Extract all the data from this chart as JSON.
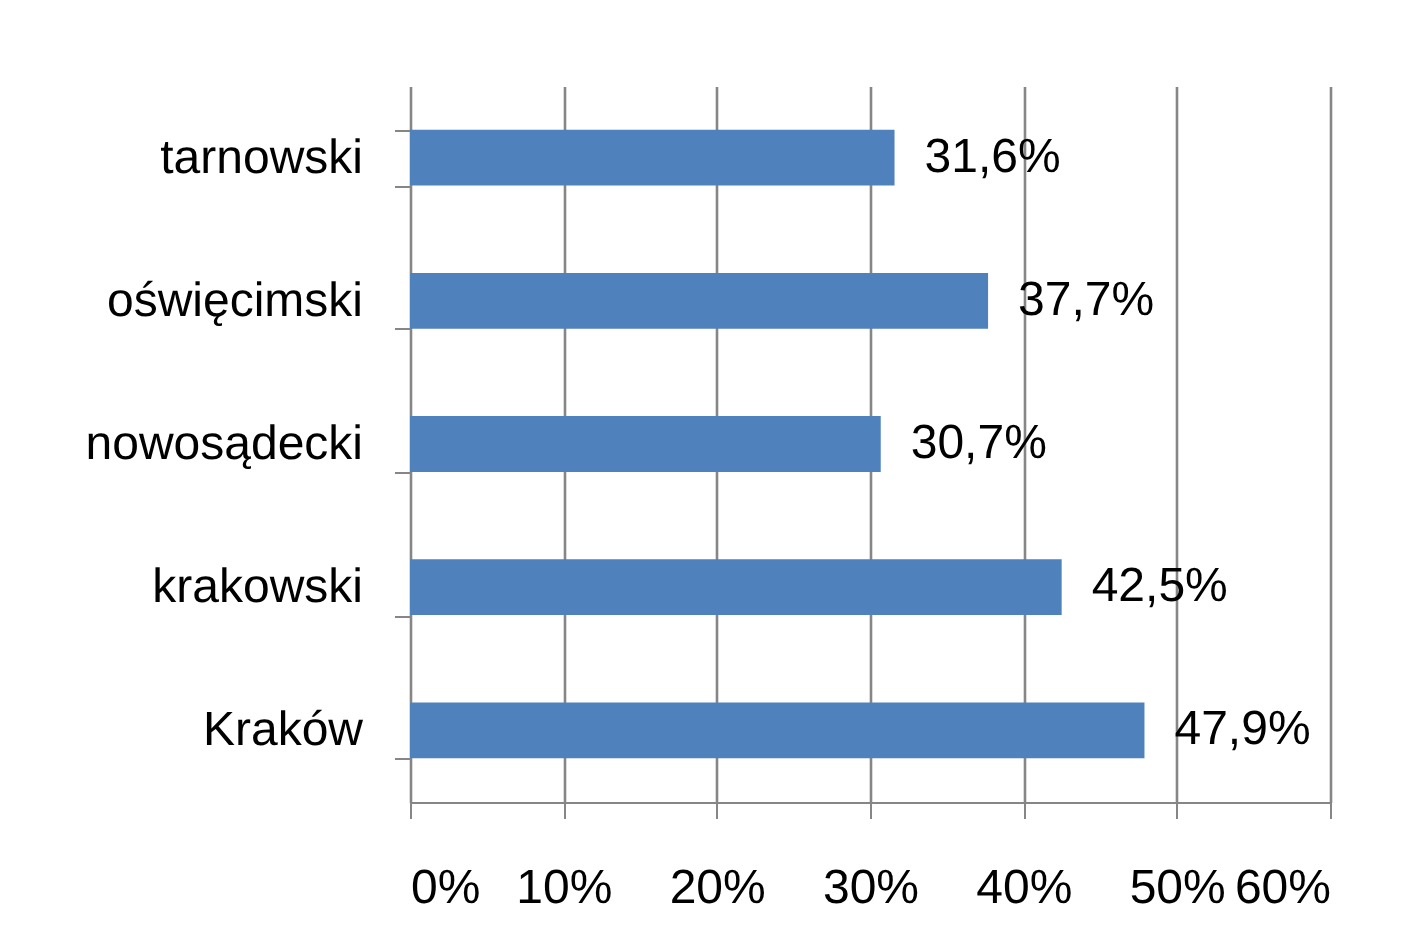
{
  "chart_data": {
    "type": "bar",
    "orientation": "horizontal",
    "categories": [
      "tarnowski",
      "oświęcimski",
      "nowosądecki",
      "krakowski",
      "Kraków"
    ],
    "values": [
      31.6,
      37.7,
      30.7,
      42.5,
      47.9
    ],
    "value_labels": [
      "31,6%",
      "37,7%",
      "30,7%",
      "42,5%",
      "47,9%"
    ],
    "color": "#4f81bd",
    "xlim": [
      0,
      60
    ],
    "xticks": [
      {
        "value": 0,
        "label": "0%"
      },
      {
        "value": 10,
        "label": "10%"
      },
      {
        "value": 20,
        "label": "20%"
      },
      {
        "value": 30,
        "label": "30%"
      },
      {
        "value": 40,
        "label": "40%"
      },
      {
        "value": 50,
        "label": "50%"
      },
      {
        "value": 60,
        "label": "60%"
      }
    ],
    "grid": "x"
  }
}
